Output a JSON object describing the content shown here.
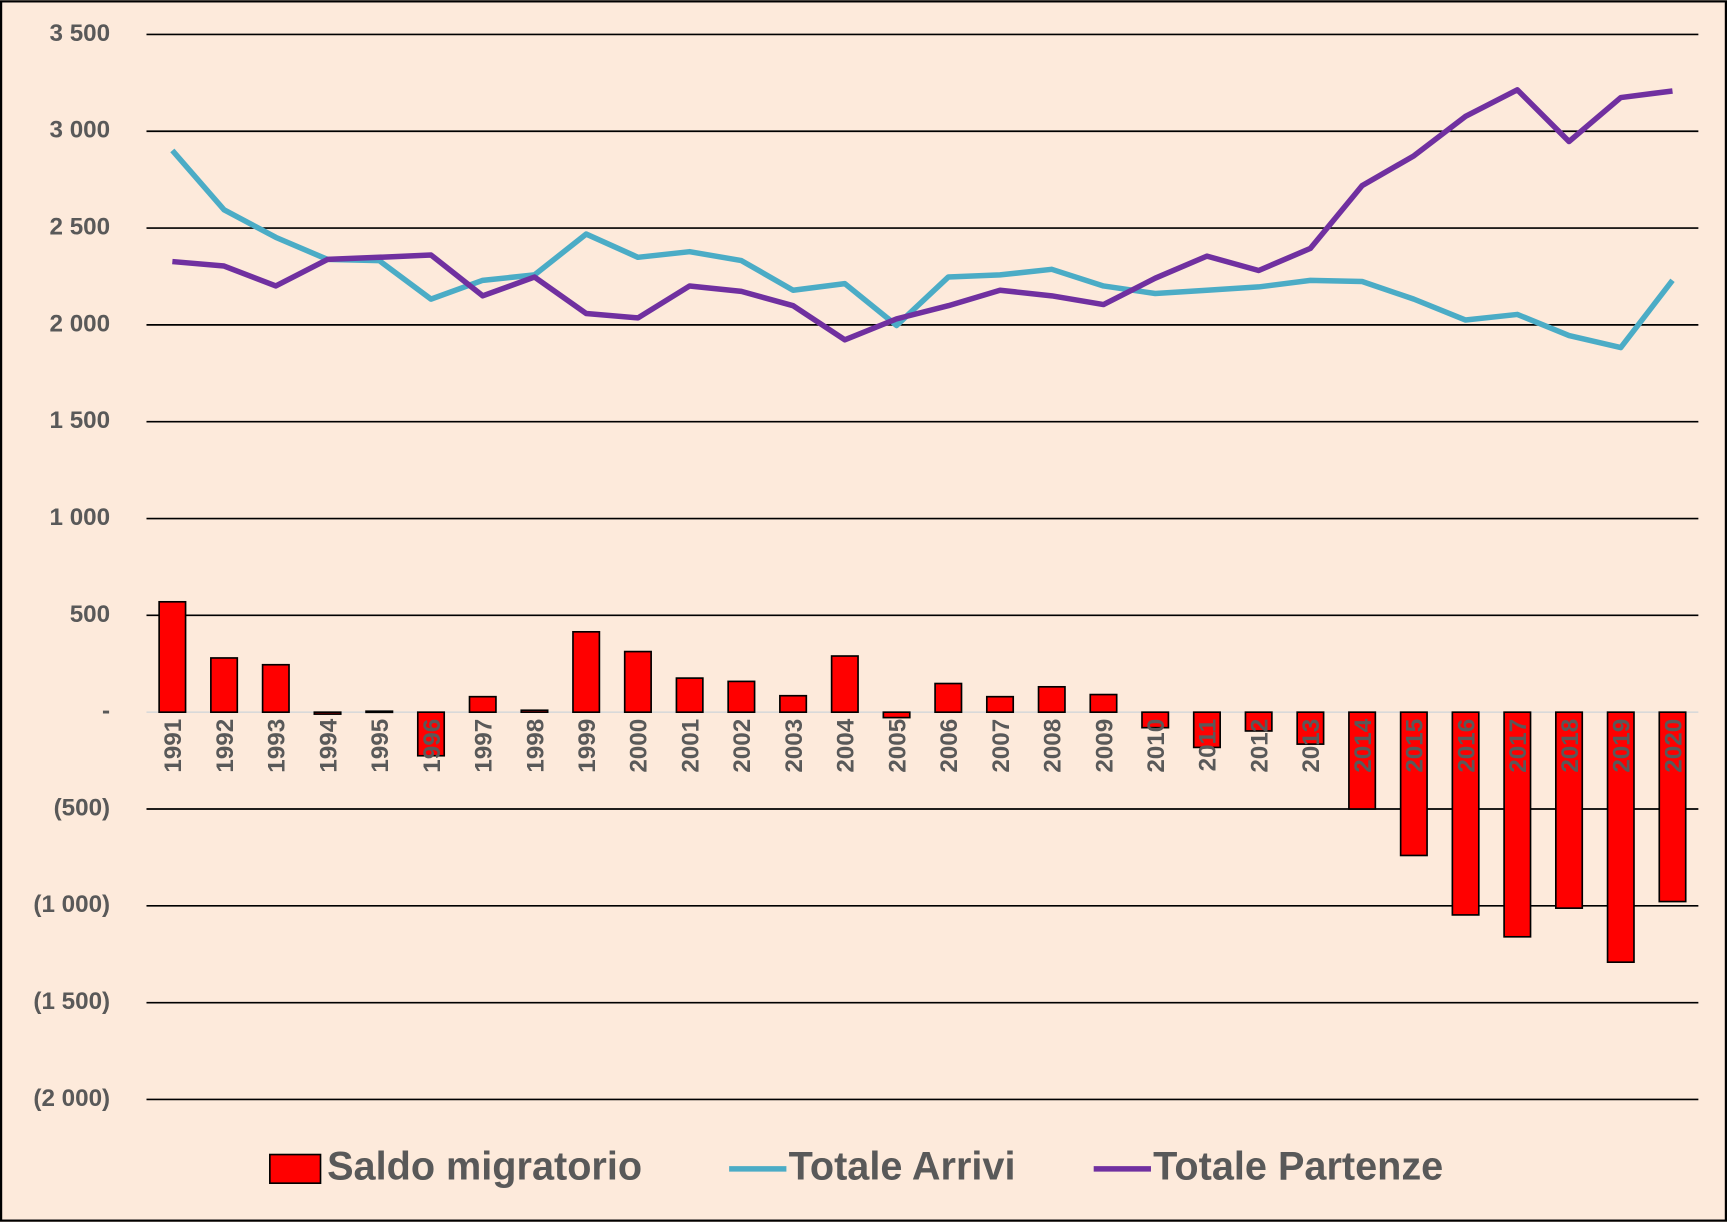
{
  "chart_data": {
    "type": "bar-line",
    "categories": [
      "1991",
      "1992",
      "1993",
      "1994",
      "1995",
      "1996",
      "1997",
      "1998",
      "1999",
      "2000",
      "2001",
      "2002",
      "2003",
      "2004",
      "2005",
      "2006",
      "2007",
      "2008",
      "2009",
      "2010",
      "2011",
      "2012",
      "2013",
      "2014",
      "2015",
      "2016",
      "2017",
      "2018",
      "2019",
      "2020"
    ],
    "series": [
      {
        "name": "Saldo migratorio",
        "type": "bar",
        "color": "#ff0000",
        "values": [
          570,
          280,
          245,
          -10,
          5,
          -225,
          80,
          10,
          415,
          313,
          176,
          159,
          85,
          290,
          -28,
          148,
          80,
          131,
          91,
          -80,
          -182,
          -97,
          -165,
          -500,
          -740,
          -1047,
          -1160,
          -1012,
          -1291,
          -978
        ]
      },
      {
        "name": "Totale Arrivi",
        "type": "line",
        "color": "#4bacc6",
        "values": [
          2901,
          2594,
          2452,
          2338,
          2332,
          2133,
          2230,
          2258,
          2469,
          2349,
          2378,
          2332,
          2179,
          2213,
          1997,
          2247,
          2258,
          2287,
          2201,
          2162,
          2179,
          2196,
          2230,
          2224,
          2133,
          2025,
          2054,
          1945,
          1883,
          2230
        ]
      },
      {
        "name": "Totale Partenze",
        "type": "line",
        "color": "#7030a0",
        "values": [
          2327,
          2304,
          2201,
          2338,
          2349,
          2361,
          2150,
          2247,
          2059,
          2036,
          2201,
          2173,
          2099,
          1923,
          2031,
          2099,
          2179,
          2150,
          2105,
          2241,
          2355,
          2281,
          2395,
          2719,
          2873,
          3077,
          3214,
          2947,
          3174,
          3208
        ]
      }
    ],
    "ylim": [
      -2000,
      3500
    ],
    "yticks": [
      {
        "value": -2000,
        "label": "(2 000)"
      },
      {
        "value": -1500,
        "label": "(1 500)"
      },
      {
        "value": -1000,
        "label": "(1 000)"
      },
      {
        "value": -500,
        "label": "(500)"
      },
      {
        "value": 0,
        "label": "-"
      },
      500,
      {
        "value": 1000,
        "label": "1 000"
      },
      {
        "value": 1500,
        "label": "1 500"
      },
      {
        "value": 2000,
        "label": "2 000"
      },
      {
        "value": 2500,
        "label": "2 500"
      },
      {
        "value": 3000,
        "label": "3 000"
      },
      {
        "value": 3500,
        "label": "3 500"
      }
    ],
    "grid": true,
    "legend": "bottom"
  }
}
